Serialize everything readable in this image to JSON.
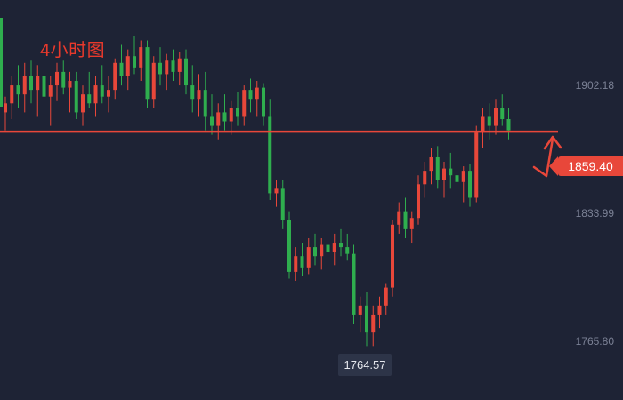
{
  "timeframe_label": "4小时图",
  "colors": {
    "background": "#1e2335",
    "up": "#e8473a",
    "down": "#2fae4e",
    "support_line": "#e8473a",
    "annotation": "#e8473a",
    "axis_text": "#7c8296"
  },
  "chart_data": {
    "type": "candlestick",
    "title": "",
    "ylim": [
      1740,
      1918
    ],
    "y_ticks": [
      "1902.18",
      "1833.99",
      "1765.80"
    ],
    "current_price_label": "1859.40",
    "low_label": "1764.57",
    "horizontal_line": 1859.4,
    "annotation": "arrow-up",
    "candles": [
      [
        1868,
        1875,
        1860,
        1872
      ],
      [
        1872,
        1884,
        1865,
        1880
      ],
      [
        1880,
        1889,
        1870,
        1876
      ],
      [
        1876,
        1890,
        1868,
        1884
      ],
      [
        1884,
        1891,
        1872,
        1878
      ],
      [
        1878,
        1889,
        1866,
        1884
      ],
      [
        1884,
        1888,
        1870,
        1875
      ],
      [
        1875,
        1884,
        1862,
        1880
      ],
      [
        1880,
        1890,
        1873,
        1886
      ],
      [
        1886,
        1891,
        1876,
        1879
      ],
      [
        1879,
        1886,
        1868,
        1882
      ],
      [
        1882,
        1886,
        1865,
        1868
      ],
      [
        1868,
        1880,
        1862,
        1876
      ],
      [
        1876,
        1886,
        1870,
        1872
      ],
      [
        1872,
        1884,
        1866,
        1880
      ],
      [
        1880,
        1889,
        1872,
        1875
      ],
      [
        1875,
        1884,
        1868,
        1878
      ],
      [
        1878,
        1892,
        1874,
        1890
      ],
      [
        1890,
        1898,
        1880,
        1884
      ],
      [
        1884,
        1896,
        1878,
        1893
      ],
      [
        1893,
        1902,
        1885,
        1888
      ],
      [
        1888,
        1900,
        1882,
        1897
      ],
      [
        1897,
        1900,
        1870,
        1874
      ],
      [
        1874,
        1893,
        1870,
        1890
      ],
      [
        1890,
        1897,
        1880,
        1885
      ],
      [
        1885,
        1894,
        1878,
        1891
      ],
      [
        1891,
        1896,
        1882,
        1886
      ],
      [
        1886,
        1895,
        1880,
        1892
      ],
      [
        1892,
        1896,
        1876,
        1880
      ],
      [
        1880,
        1889,
        1868,
        1874
      ],
      [
        1874,
        1885,
        1866,
        1878
      ],
      [
        1878,
        1886,
        1860,
        1866
      ],
      [
        1866,
        1876,
        1858,
        1862
      ],
      [
        1862,
        1872,
        1856,
        1868
      ],
      [
        1868,
        1876,
        1860,
        1864
      ],
      [
        1864,
        1873,
        1858,
        1870
      ],
      [
        1870,
        1877,
        1862,
        1866
      ],
      [
        1866,
        1880,
        1862,
        1878
      ],
      [
        1878,
        1883,
        1868,
        1874
      ],
      [
        1874,
        1882,
        1866,
        1879
      ],
      [
        1879,
        1881,
        1862,
        1866
      ],
      [
        1866,
        1874,
        1829,
        1832
      ],
      [
        1832,
        1838,
        1826,
        1834
      ],
      [
        1834,
        1838,
        1816,
        1820
      ],
      [
        1820,
        1824,
        1794,
        1797
      ],
      [
        1797,
        1808,
        1793,
        1804
      ],
      [
        1804,
        1810,
        1795,
        1799
      ],
      [
        1799,
        1812,
        1796,
        1808
      ],
      [
        1808,
        1814,
        1800,
        1804
      ],
      [
        1804,
        1812,
        1798,
        1809
      ],
      [
        1809,
        1816,
        1802,
        1806
      ],
      [
        1806,
        1814,
        1800,
        1810
      ],
      [
        1810,
        1816,
        1804,
        1808
      ],
      [
        1808,
        1814,
        1802,
        1805
      ],
      [
        1805,
        1809,
        1774,
        1778
      ],
      [
        1778,
        1786,
        1770,
        1782
      ],
      [
        1782,
        1788,
        1764,
        1770
      ],
      [
        1770,
        1782,
        1764,
        1778
      ],
      [
        1778,
        1786,
        1772,
        1782
      ],
      [
        1782,
        1792,
        1778,
        1790
      ],
      [
        1790,
        1820,
        1786,
        1818
      ],
      [
        1818,
        1828,
        1814,
        1824
      ],
      [
        1824,
        1830,
        1812,
        1816
      ],
      [
        1816,
        1824,
        1810,
        1821
      ],
      [
        1821,
        1840,
        1818,
        1836
      ],
      [
        1836,
        1846,
        1830,
        1842
      ],
      [
        1842,
        1852,
        1836,
        1848
      ],
      [
        1848,
        1853,
        1834,
        1838
      ],
      [
        1838,
        1846,
        1830,
        1843
      ],
      [
        1843,
        1850,
        1834,
        1840
      ],
      [
        1840,
        1845,
        1830,
        1837
      ],
      [
        1837,
        1844,
        1828,
        1842
      ],
      [
        1842,
        1845,
        1826,
        1830
      ],
      [
        1830,
        1862,
        1828,
        1859
      ],
      [
        1859,
        1870,
        1852,
        1866
      ],
      [
        1866,
        1872,
        1856,
        1862
      ],
      [
        1862,
        1874,
        1858,
        1870
      ],
      [
        1870,
        1876,
        1862,
        1865
      ],
      [
        1865,
        1870,
        1856,
        1860
      ]
    ]
  }
}
